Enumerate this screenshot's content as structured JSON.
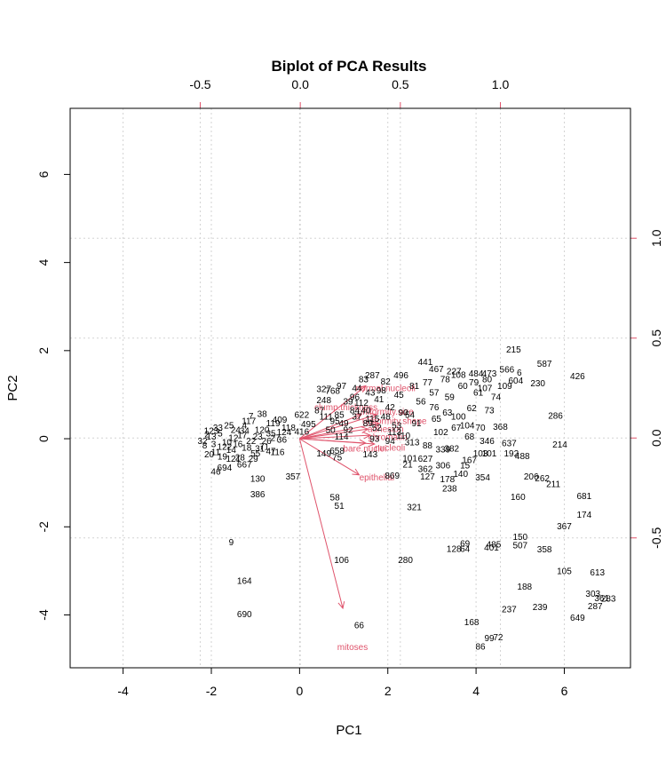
{
  "chart_data": {
    "type": "scatter",
    "title": "Biplot of PCA Results",
    "xlabel": "PC1",
    "ylabel": "PC2",
    "xlim": [
      -5.2,
      7.5
    ],
    "ylim": [
      -5.2,
      7.5
    ],
    "xticks": [
      -4,
      -2,
      0,
      2,
      4,
      6
    ],
    "yticks": [
      -4,
      -2,
      0,
      2,
      4,
      6
    ],
    "loading_lim": [
      -1.15,
      1.65
    ],
    "loading_ticks_top": [
      -0.5,
      0.0,
      0.5,
      1.0
    ],
    "loading_ticks_right": [
      -0.5,
      0.0,
      0.5,
      1.0
    ],
    "loading_tick_labels": [
      "-0.5",
      "0.0",
      "0.5",
      "1.0"
    ],
    "grid": true,
    "colors": {
      "points": "#000000",
      "loadings": "#df536b",
      "grid": "#d3d3d3"
    },
    "points": [
      {
        "label": "215",
        "x": 4.85,
        "y": 2.03
      },
      {
        "label": "587",
        "x": 5.55,
        "y": 1.7
      },
      {
        "label": "426",
        "x": 6.3,
        "y": 1.42
      },
      {
        "label": "566",
        "x": 4.7,
        "y": 1.57
      },
      {
        "label": "6",
        "x": 4.98,
        "y": 1.5
      },
      {
        "label": "604",
        "x": 4.9,
        "y": 1.32
      },
      {
        "label": "230",
        "x": 5.4,
        "y": 1.26
      },
      {
        "label": "441",
        "x": 2.85,
        "y": 1.74
      },
      {
        "label": "467",
        "x": 3.1,
        "y": 1.58
      },
      {
        "label": "227",
        "x": 3.5,
        "y": 1.53
      },
      {
        "label": "484",
        "x": 4.0,
        "y": 1.48
      },
      {
        "label": "473",
        "x": 4.3,
        "y": 1.48
      },
      {
        "label": "287",
        "x": 1.65,
        "y": 1.44
      },
      {
        "label": "496",
        "x": 2.3,
        "y": 1.44
      },
      {
        "label": "327",
        "x": 0.55,
        "y": 1.13
      },
      {
        "label": "248",
        "x": 0.55,
        "y": 0.88
      },
      {
        "label": "768",
        "x": 0.75,
        "y": 1.09
      },
      {
        "label": "286",
        "x": 5.8,
        "y": 0.53
      },
      {
        "label": "368",
        "x": 4.55,
        "y": 0.27
      },
      {
        "label": "214",
        "x": 5.9,
        "y": -0.13
      },
      {
        "label": "637",
        "x": 4.75,
        "y": -0.1
      },
      {
        "label": "192",
        "x": 4.8,
        "y": -0.33
      },
      {
        "label": "488",
        "x": 5.05,
        "y": -0.39
      },
      {
        "label": "206",
        "x": 5.25,
        "y": -0.86
      },
      {
        "label": "262",
        "x": 5.5,
        "y": -0.9
      },
      {
        "label": "211",
        "x": 5.75,
        "y": -1.03
      },
      {
        "label": "681",
        "x": 6.45,
        "y": -1.3
      },
      {
        "label": "174",
        "x": 6.45,
        "y": -1.72
      },
      {
        "label": "367",
        "x": 6.0,
        "y": -1.98
      },
      {
        "label": "160",
        "x": 4.95,
        "y": -1.32
      },
      {
        "label": "150",
        "x": 5.0,
        "y": -2.23
      },
      {
        "label": "507",
        "x": 5.0,
        "y": -2.42
      },
      {
        "label": "358",
        "x": 5.55,
        "y": -2.51
      },
      {
        "label": "105",
        "x": 6.0,
        "y": -3.0
      },
      {
        "label": "613",
        "x": 6.75,
        "y": -3.03
      },
      {
        "label": "188",
        "x": 5.1,
        "y": -3.36
      },
      {
        "label": "303",
        "x": 6.65,
        "y": -3.52
      },
      {
        "label": "361",
        "x": 6.85,
        "y": -3.62
      },
      {
        "label": "283",
        "x": 7.0,
        "y": -3.63
      },
      {
        "label": "287",
        "x": 6.7,
        "y": -3.8
      },
      {
        "label": "239",
        "x": 5.45,
        "y": -3.82
      },
      {
        "label": "237",
        "x": 4.75,
        "y": -3.87
      },
      {
        "label": "649",
        "x": 6.3,
        "y": -4.06
      },
      {
        "label": "168",
        "x": 3.9,
        "y": -4.16
      },
      {
        "label": "72",
        "x": 4.5,
        "y": -4.5
      },
      {
        "label": "99",
        "x": 4.3,
        "y": -4.52
      },
      {
        "label": "86",
        "x": 4.1,
        "y": -4.72
      },
      {
        "label": "66",
        "x": 1.35,
        "y": -4.23
      },
      {
        "label": "106",
        "x": 0.95,
        "y": -2.75
      },
      {
        "label": "280",
        "x": 2.4,
        "y": -2.75
      },
      {
        "label": "321",
        "x": 2.6,
        "y": -1.55
      },
      {
        "label": "58",
        "x": 0.8,
        "y": -1.33
      },
      {
        "label": "51",
        "x": 0.9,
        "y": -1.52
      },
      {
        "label": "357",
        "x": -0.15,
        "y": -0.86
      },
      {
        "label": "386",
        "x": -0.95,
        "y": -1.26
      },
      {
        "label": "130",
        "x": -0.95,
        "y": -0.91
      },
      {
        "label": "9",
        "x": -1.55,
        "y": -2.35
      },
      {
        "label": "164",
        "x": -1.25,
        "y": -3.22
      },
      {
        "label": "690",
        "x": -1.25,
        "y": -3.98
      },
      {
        "label": "694",
        "x": -1.7,
        "y": -0.65
      },
      {
        "label": "46",
        "x": -1.9,
        "y": -0.74
      },
      {
        "label": "667",
        "x": -1.25,
        "y": -0.58
      },
      {
        "label": "149",
        "x": 0.55,
        "y": -0.33
      },
      {
        "label": "75",
        "x": 0.85,
        "y": -0.42
      },
      {
        "label": "658",
        "x": 0.85,
        "y": -0.27
      },
      {
        "label": "143",
        "x": 1.6,
        "y": -0.35
      },
      {
        "label": "869",
        "x": 2.1,
        "y": -0.84
      },
      {
        "label": "127",
        "x": 2.9,
        "y": -0.86
      },
      {
        "label": "238",
        "x": 3.4,
        "y": -1.13
      },
      {
        "label": "354",
        "x": 4.15,
        "y": -0.88
      },
      {
        "label": "101",
        "x": 2.5,
        "y": -0.44
      },
      {
        "label": "627",
        "x": 2.85,
        "y": -0.45
      },
      {
        "label": "21",
        "x": 2.45,
        "y": -0.58
      },
      {
        "label": "362",
        "x": 2.85,
        "y": -0.68
      },
      {
        "label": "313",
        "x": 2.55,
        "y": -0.08
      },
      {
        "label": "88",
        "x": 2.9,
        "y": -0.15
      },
      {
        "label": "339",
        "x": 3.25,
        "y": -0.24
      },
      {
        "label": "382",
        "x": 3.45,
        "y": -0.22
      },
      {
        "label": "167",
        "x": 3.85,
        "y": -0.48
      },
      {
        "label": "103",
        "x": 4.1,
        "y": -0.33
      },
      {
        "label": "101",
        "x": 4.3,
        "y": -0.33
      },
      {
        "label": "15",
        "x": 3.75,
        "y": -0.6
      },
      {
        "label": "306",
        "x": 3.25,
        "y": -0.6
      },
      {
        "label": "178",
        "x": 3.35,
        "y": -0.92
      },
      {
        "label": "140",
        "x": 3.65,
        "y": -0.8
      },
      {
        "label": "110",
        "x": 2.35,
        "y": 0.07
      },
      {
        "label": "346",
        "x": 4.25,
        "y": -0.05
      },
      {
        "label": "128",
        "x": 3.5,
        "y": -2.5
      },
      {
        "label": "69",
        "x": 3.75,
        "y": -2.38
      },
      {
        "label": "64",
        "x": 3.75,
        "y": -2.5
      },
      {
        "label": "401",
        "x": 4.35,
        "y": -2.47
      },
      {
        "label": "485",
        "x": 4.4,
        "y": -2.4
      },
      {
        "label": "7",
        "x": -1.1,
        "y": 0.52
      },
      {
        "label": "38",
        "x": -0.85,
        "y": 0.57
      },
      {
        "label": "4",
        "x": -1.25,
        "y": 0.3
      },
      {
        "label": "622",
        "x": 0.05,
        "y": 0.55
      },
      {
        "label": "416",
        "x": 0.05,
        "y": 0.16
      },
      {
        "label": "409",
        "x": -0.45,
        "y": 0.43
      },
      {
        "label": "495",
        "x": 0.2,
        "y": 0.33
      },
      {
        "label": "47",
        "x": -0.65,
        "y": -0.28
      },
      {
        "label": "71",
        "x": -0.8,
        "y": -0.18
      },
      {
        "label": "55",
        "x": -1.0,
        "y": -0.33
      },
      {
        "label": "2",
        "x": -2.1,
        "y": 0.1
      },
      {
        "label": "3",
        "x": -1.95,
        "y": -0.12
      },
      {
        "label": "5",
        "x": -1.8,
        "y": 0.12
      },
      {
        "label": "8",
        "x": -2.15,
        "y": -0.15
      },
      {
        "label": "10",
        "x": -1.65,
        "y": -0.08
      },
      {
        "label": "11",
        "x": -1.9,
        "y": -0.3
      },
      {
        "label": "12",
        "x": -1.5,
        "y": 0.02
      },
      {
        "label": "13",
        "x": -2.0,
        "y": 0.05
      },
      {
        "label": "14",
        "x": -1.55,
        "y": -0.25
      },
      {
        "label": "16",
        "x": -1.4,
        "y": -0.12
      },
      {
        "label": "17",
        "x": -1.3,
        "y": 0.08
      },
      {
        "label": "18",
        "x": -1.2,
        "y": -0.2
      },
      {
        "label": "19",
        "x": -1.75,
        "y": -0.4
      },
      {
        "label": "20",
        "x": -2.05,
        "y": -0.35
      },
      {
        "label": "22",
        "x": -1.1,
        "y": -0.05
      },
      {
        "label": "23",
        "x": -0.95,
        "y": 0.05
      },
      {
        "label": "24",
        "x": -1.45,
        "y": 0.2
      },
      {
        "label": "25",
        "x": -1.6,
        "y": 0.3
      },
      {
        "label": "26",
        "x": -0.75,
        "y": -0.05
      },
      {
        "label": "27",
        "x": -0.55,
        "y": 0.02
      },
      {
        "label": "28",
        "x": -1.35,
        "y": -0.42
      },
      {
        "label": "29",
        "x": -1.05,
        "y": -0.45
      },
      {
        "label": "31",
        "x": -0.9,
        "y": -0.22
      },
      {
        "label": "32",
        "x": -2.2,
        "y": -0.05
      },
      {
        "label": "33",
        "x": -1.85,
        "y": 0.25
      },
      {
        "label": "34",
        "x": -1.25,
        "y": 0.18
      },
      {
        "label": "35",
        "x": -0.65,
        "y": 0.12
      },
      {
        "label": "36",
        "x": -0.4,
        "y": -0.02
      },
      {
        "label": "37",
        "x": 1.3,
        "y": 0.5
      },
      {
        "label": "39",
        "x": 1.1,
        "y": 0.85
      },
      {
        "label": "40",
        "x": 1.5,
        "y": 0.65
      },
      {
        "label": "41",
        "x": 1.8,
        "y": 0.9
      },
      {
        "label": "42",
        "x": 2.05,
        "y": 0.72
      },
      {
        "label": "43",
        "x": 1.6,
        "y": 1.05
      },
      {
        "label": "44",
        "x": 1.3,
        "y": 1.15
      },
      {
        "label": "45",
        "x": 2.25,
        "y": 1.0
      },
      {
        "label": "48",
        "x": 1.95,
        "y": 0.5
      },
      {
        "label": "49",
        "x": 1.0,
        "y": 0.35
      },
      {
        "label": "50",
        "x": 0.7,
        "y": 0.2
      },
      {
        "label": "52",
        "x": 1.75,
        "y": 0.25
      },
      {
        "label": "53",
        "x": 2.2,
        "y": 0.3
      },
      {
        "label": "54",
        "x": 2.5,
        "y": 0.55
      },
      {
        "label": "56",
        "x": 2.75,
        "y": 0.85
      },
      {
        "label": "57",
        "x": 3.05,
        "y": 1.05
      },
      {
        "label": "59",
        "x": 3.4,
        "y": 0.95
      },
      {
        "label": "60",
        "x": 3.7,
        "y": 1.2
      },
      {
        "label": "61",
        "x": 4.05,
        "y": 1.05
      },
      {
        "label": "62",
        "x": 3.9,
        "y": 0.7
      },
      {
        "label": "63",
        "x": 3.35,
        "y": 0.6
      },
      {
        "label": "65",
        "x": 3.1,
        "y": 0.45
      },
      {
        "label": "67",
        "x": 3.55,
        "y": 0.25
      },
      {
        "label": "68",
        "x": 3.85,
        "y": 0.05
      },
      {
        "label": "70",
        "x": 4.1,
        "y": 0.25
      },
      {
        "label": "73",
        "x": 4.3,
        "y": 0.65
      },
      {
        "label": "74",
        "x": 4.45,
        "y": 0.95
      },
      {
        "label": "76",
        "x": 3.05,
        "y": 0.72
      },
      {
        "label": "77",
        "x": 2.9,
        "y": 1.28
      },
      {
        "label": "78",
        "x": 3.3,
        "y": 1.35
      },
      {
        "label": "79",
        "x": 3.95,
        "y": 1.28
      },
      {
        "label": "80",
        "x": 4.25,
        "y": 1.35
      },
      {
        "label": "81",
        "x": 2.6,
        "y": 1.2
      },
      {
        "label": "82",
        "x": 1.95,
        "y": 1.3
      },
      {
        "label": "83",
        "x": 1.45,
        "y": 1.35
      },
      {
        "label": "84",
        "x": 1.25,
        "y": 0.65
      },
      {
        "label": "85",
        "x": 0.9,
        "y": 0.55
      },
      {
        "label": "87",
        "x": 0.45,
        "y": 0.65
      },
      {
        "label": "89",
        "x": 1.55,
        "y": 0.35
      },
      {
        "label": "90",
        "x": 2.35,
        "y": 0.6
      },
      {
        "label": "91",
        "x": 2.65,
        "y": 0.35
      },
      {
        "label": "92",
        "x": 1.1,
        "y": 0.2
      },
      {
        "label": "93",
        "x": 1.7,
        "y": 0.0
      },
      {
        "label": "94",
        "x": 2.05,
        "y": -0.05
      },
      {
        "label": "95",
        "x": 0.8,
        "y": 0.4
      },
      {
        "label": "96",
        "x": 1.25,
        "y": 0.95
      },
      {
        "label": "97",
        "x": 0.95,
        "y": 1.2
      },
      {
        "label": "98",
        "x": 1.85,
        "y": 1.1
      },
      {
        "label": "100",
        "x": 3.6,
        "y": 0.5
      },
      {
        "label": "102",
        "x": 3.2,
        "y": 0.15
      },
      {
        "label": "104",
        "x": 3.8,
        "y": 0.3
      },
      {
        "label": "107",
        "x": 4.2,
        "y": 1.15
      },
      {
        "label": "108",
        "x": 3.6,
        "y": 1.45
      },
      {
        "label": "109",
        "x": 4.65,
        "y": 1.2
      },
      {
        "label": "111",
        "x": 0.6,
        "y": 0.5
      },
      {
        "label": "112",
        "x": 1.4,
        "y": 0.82
      },
      {
        "label": "113",
        "x": 2.15,
        "y": 0.15
      },
      {
        "label": "114",
        "x": 0.95,
        "y": 0.05
      },
      {
        "label": "115",
        "x": 1.65,
        "y": 0.45
      },
      {
        "label": "116",
        "x": -0.5,
        "y": -0.3
      },
      {
        "label": "117",
        "x": -1.15,
        "y": 0.4
      },
      {
        "label": "118",
        "x": -0.25,
        "y": 0.25
      },
      {
        "label": "119",
        "x": -0.6,
        "y": 0.35
      },
      {
        "label": "120",
        "x": -0.85,
        "y": 0.2
      },
      {
        "label": "121",
        "x": -1.5,
        "y": -0.45
      },
      {
        "label": "122",
        "x": -1.7,
        "y": -0.18
      },
      {
        "label": "123",
        "x": -2.0,
        "y": 0.18
      },
      {
        "label": "124",
        "x": -0.35,
        "y": 0.15
      }
    ],
    "loadings": [
      {
        "name": "epithelial",
        "x": 1.35,
        "y": -0.82,
        "label_x": 1.75,
        "label_y": -0.88
      },
      {
        "name": "mitoses",
        "x": 0.98,
        "y": -3.85,
        "label_x": 1.2,
        "label_y": -4.73
      },
      {
        "name": "nucleoli",
        "x": 1.7,
        "y": -0.12,
        "label_x": 2.05,
        "label_y": -0.2
      },
      {
        "name": "bare.nuclei",
        "x": 1.5,
        "y": -0.1,
        "label_x": 1.48,
        "label_y": -0.22
      },
      {
        "name": "clump.thickness",
        "x": 1.4,
        "y": 0.55,
        "label_x": 1.05,
        "label_y": 0.72
      },
      {
        "name": "uniformity.size",
        "x": 1.75,
        "y": 0.55,
        "label_x": 1.95,
        "label_y": 0.62
      },
      {
        "name": "uniformity.shape",
        "x": 1.8,
        "y": 0.35,
        "label_x": 2.15,
        "label_y": 0.4
      },
      {
        "name": "adhesion",
        "x": 1.55,
        "y": 0.22,
        "label_x": 1.95,
        "label_y": 0.22
      },
      {
        "name": "chromatin",
        "x": 1.6,
        "y": 0.08,
        "label_x": 2.0,
        "label_y": 0.04
      },
      {
        "name": "normal.nucleoli",
        "x": 1.5,
        "y": 1.2,
        "label_x": 1.95,
        "label_y": 1.15
      }
    ]
  }
}
